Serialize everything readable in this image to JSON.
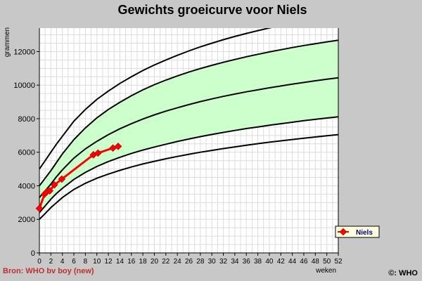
{
  "chart_data": {
    "type": "line",
    "title": "Gewichts groeicurve voor Niels",
    "xlabel": "weken",
    "ylabel": "grammen",
    "xlim": [
      0,
      52
    ],
    "ylim": [
      0,
      13400
    ],
    "x_ticks": [
      0,
      2,
      4,
      6,
      8,
      10,
      12,
      14,
      16,
      18,
      20,
      22,
      24,
      26,
      28,
      30,
      32,
      34,
      36,
      38,
      40,
      42,
      44,
      46,
      48,
      50,
      52
    ],
    "y_ticks": [
      0,
      2000,
      4000,
      6000,
      8000,
      10000,
      12000
    ],
    "grid": true,
    "legend_position": "right",
    "band_color": "#ccffcc",
    "reference_x": [
      0,
      1,
      2,
      3,
      4,
      6,
      8,
      10,
      12,
      14,
      16,
      18,
      20,
      22,
      24,
      26,
      28,
      30,
      32,
      34,
      36,
      38,
      40,
      42,
      44,
      46,
      48,
      50,
      52
    ],
    "reference_lines": [
      {
        "values": [
          2000,
          2350,
          2700,
          3000,
          3300,
          3780,
          4150,
          4450,
          4700,
          4920,
          5120,
          5300,
          5460,
          5610,
          5750,
          5880,
          6000,
          6110,
          6220,
          6320,
          6420,
          6510,
          6600,
          6680,
          6760,
          6840,
          6910,
          6980,
          7050
        ]
      },
      {
        "values": [
          2400,
          2800,
          3200,
          3550,
          3850,
          4380,
          4800,
          5150,
          5450,
          5700,
          5930,
          6130,
          6310,
          6480,
          6640,
          6790,
          6930,
          7060,
          7180,
          7300,
          7410,
          7510,
          7610,
          7700,
          7790,
          7880,
          7960,
          8040,
          8110
        ]
      },
      {
        "values": [
          3300,
          3700,
          4100,
          4550,
          4950,
          5650,
          6200,
          6650,
          7050,
          7400,
          7700,
          7980,
          8230,
          8450,
          8650,
          8840,
          9020,
          9180,
          9330,
          9470,
          9600,
          9720,
          9840,
          9950,
          10060,
          10160,
          10260,
          10350,
          10440
        ]
      },
      {
        "values": [
          4000,
          4450,
          4900,
          5400,
          5900,
          6750,
          7450,
          8050,
          8550,
          8980,
          9370,
          9720,
          10030,
          10300,
          10550,
          10780,
          10990,
          11180,
          11360,
          11530,
          11690,
          11840,
          11980,
          12110,
          12240,
          12360,
          12470,
          12580,
          12680
        ]
      },
      {
        "values": [
          5000,
          5500,
          6000,
          6500,
          6950,
          7850,
          8550,
          9150,
          9650,
          10100,
          10500,
          10870,
          11200,
          11500,
          11780,
          12040,
          12280,
          12500,
          12710,
          12900,
          13080,
          13250,
          13410,
          13560,
          13700,
          13840,
          13970,
          14090,
          14200
        ]
      }
    ],
    "band_between": [
      1,
      3
    ],
    "series": [
      {
        "name": "Niels",
        "color": "#ff0000",
        "x": [
          0,
          0.9,
          1.3,
          1.8,
          2.6,
          3.9,
          9.4,
          10.2,
          12.8,
          13.7
        ],
        "y": [
          2650,
          3500,
          3650,
          3700,
          4050,
          4400,
          5850,
          5950,
          6250,
          6350
        ]
      }
    ],
    "source_text": "Bron: WHO bv boy (new)",
    "copyright_text": "©: WHO"
  }
}
